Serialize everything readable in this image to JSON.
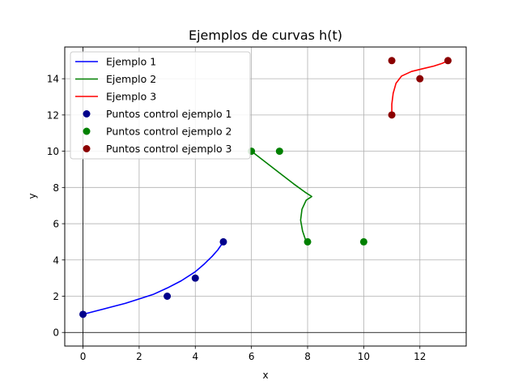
{
  "chart_data": {
    "type": "line",
    "title": "Ejemplos de curvas h(t)",
    "xlabel": "x",
    "ylabel": "y",
    "xlim": [
      -0.65,
      13.65
    ],
    "ylim": [
      -0.75,
      15.75
    ],
    "xticks": [
      0,
      2,
      4,
      6,
      8,
      10,
      12
    ],
    "yticks": [
      0,
      2,
      4,
      6,
      8,
      10,
      12,
      14
    ],
    "grid": true,
    "legend_position": "top-left",
    "series": [
      {
        "name": "Ejemplo 1",
        "kind": "line",
        "color": "#0000ff",
        "x": [
          0,
          0.5,
          1.0,
          1.5,
          2.0,
          2.5,
          3.0,
          3.5,
          4.0,
          4.3,
          4.6,
          4.8,
          5.0
        ],
        "y": [
          1.0,
          1.2,
          1.4,
          1.6,
          1.85,
          2.1,
          2.45,
          2.85,
          3.35,
          3.75,
          4.2,
          4.55,
          5.0
        ]
      },
      {
        "name": "Ejemplo 2",
        "kind": "line",
        "color": "#008000",
        "x": [
          6.0,
          6.5,
          7.0,
          7.5,
          7.9,
          8.15,
          7.95,
          7.8,
          7.75,
          7.82,
          7.95
        ],
        "y": [
          10.0,
          9.4,
          8.8,
          8.2,
          7.75,
          7.5,
          7.3,
          6.8,
          6.2,
          5.6,
          5.0
        ]
      },
      {
        "name": "Ejemplo 3",
        "kind": "line",
        "color": "#ff0000",
        "x": [
          11.0,
          11.0,
          11.05,
          11.15,
          11.35,
          11.7,
          12.1,
          12.5,
          12.8,
          13.0
        ],
        "y": [
          12.0,
          12.6,
          13.2,
          13.75,
          14.15,
          14.4,
          14.55,
          14.7,
          14.85,
          15.0
        ]
      },
      {
        "name": "Puntos control ejemplo 1",
        "kind": "scatter",
        "color": "#00008b",
        "x": [
          0,
          3,
          4,
          5
        ],
        "y": [
          1,
          2,
          3,
          5
        ]
      },
      {
        "name": "Puntos control ejemplo 2",
        "kind": "scatter",
        "color": "#008000",
        "x": [
          6,
          7,
          8,
          10
        ],
        "y": [
          10,
          10,
          5,
          5
        ]
      },
      {
        "name": "Puntos control ejemplo 3",
        "kind": "scatter",
        "color": "#8b0000",
        "x": [
          11,
          11,
          12,
          13
        ],
        "y": [
          12,
          15,
          14,
          15
        ]
      }
    ]
  }
}
